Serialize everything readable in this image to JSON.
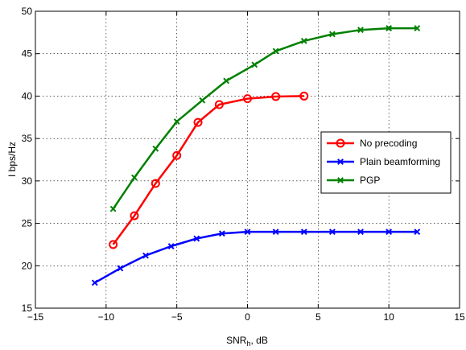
{
  "chart_data": {
    "type": "line",
    "title": "",
    "xlabel": "SNR",
    "xlabel_subscript": "h",
    "xlabel_suffix": ", dB",
    "ylabel": "I bps/Hz",
    "xlim": [
      -15,
      15
    ],
    "ylim": [
      15,
      50
    ],
    "xticks": [
      "−15",
      "−10",
      "−5",
      "0",
      "5",
      "10",
      "15"
    ],
    "yticks": [
      "15",
      "20",
      "25",
      "30",
      "35",
      "40",
      "45",
      "50"
    ],
    "grid": true,
    "legend_position": "center-right",
    "series": [
      {
        "name": "No precoding",
        "color": "#ff0000",
        "marker": "circle",
        "x": [
          -9.5,
          -8,
          -6.5,
          -5,
          -3.5,
          -2,
          0,
          2,
          4
        ],
        "y": [
          22.5,
          25.9,
          29.7,
          33.0,
          36.9,
          39.0,
          39.7,
          39.95,
          40.0
        ]
      },
      {
        "name": "Plain beamforming",
        "color": "#0000ff",
        "marker": "x",
        "x": [
          -10.8,
          -9,
          -7.2,
          -5.4,
          -3.6,
          -1.8,
          0,
          2,
          4,
          6,
          8,
          10,
          12
        ],
        "y": [
          18.0,
          19.7,
          21.2,
          22.3,
          23.2,
          23.8,
          24.0,
          24.0,
          24.0,
          24.0,
          24.0,
          24.0,
          24.0
        ]
      },
      {
        "name": "PGP",
        "color": "#008000",
        "marker": "x",
        "x": [
          -9.5,
          -8,
          -6.5,
          -5,
          -3.2,
          -1.5,
          0.5,
          2,
          4,
          6,
          8,
          10,
          12
        ],
        "y": [
          26.7,
          30.4,
          33.8,
          37.0,
          39.5,
          41.8,
          43.7,
          45.3,
          46.5,
          47.3,
          47.8,
          48.0,
          48.0
        ]
      }
    ]
  }
}
